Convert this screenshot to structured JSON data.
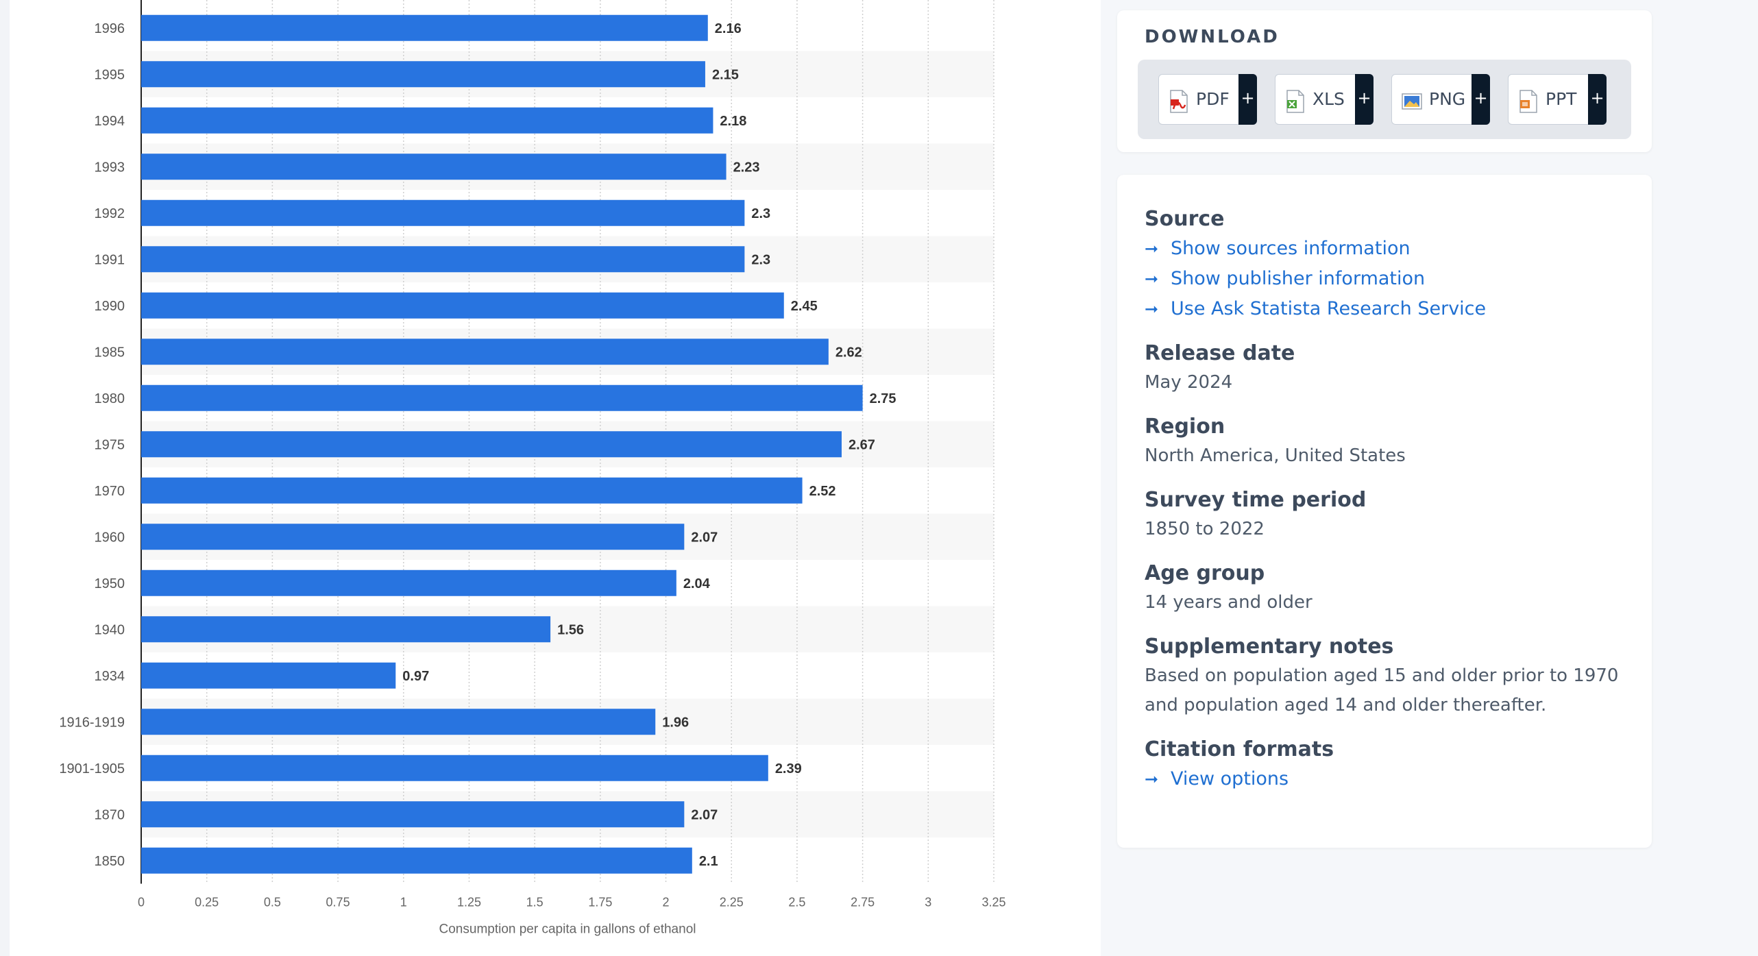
{
  "chart_data": {
    "type": "bar",
    "orientation": "horizontal",
    "categories": [
      "1996",
      "1995",
      "1994",
      "1993",
      "1992",
      "1991",
      "1990",
      "1985",
      "1980",
      "1975",
      "1970",
      "1960",
      "1950",
      "1940",
      "1934",
      "1916-1919",
      "1901-1905",
      "1870",
      "1850"
    ],
    "values": [
      2.16,
      2.15,
      2.18,
      2.23,
      2.3,
      2.3,
      2.45,
      2.62,
      2.75,
      2.67,
      2.52,
      2.07,
      2.04,
      1.56,
      0.97,
      1.96,
      2.39,
      2.07,
      2.1
    ],
    "value_labels": [
      "2.16",
      "2.15",
      "2.18",
      "2.23",
      "2.3",
      "2.3",
      "2.45",
      "2.62",
      "2.75",
      "2.67",
      "2.52",
      "2.07",
      "2.04",
      "1.56",
      "0.97",
      "1.96",
      "2.39",
      "2.07",
      "2.1"
    ],
    "x_ticks": [
      "0",
      "0.25",
      "0.5",
      "0.75",
      "1",
      "1.25",
      "1.5",
      "1.75",
      "2",
      "2.25",
      "2.5",
      "2.75",
      "3",
      "3.25"
    ],
    "xlim": [
      0,
      3.25
    ],
    "xlabel": "Consumption per capita in gallons of ethanol",
    "grid": true,
    "colors": {
      "bar": "#2874e0",
      "stripe": "#f7f7f7",
      "label": "#333333",
      "axis_text": "#666666"
    }
  },
  "download": {
    "title": "DOWNLOAD",
    "buttons": [
      {
        "label": "PDF",
        "icon": "pdf-file-icon",
        "color": "#d7261e"
      },
      {
        "label": "XLS",
        "icon": "xls-file-icon",
        "color": "#4aa33a"
      },
      {
        "label": "PNG",
        "icon": "png-file-icon",
        "color": "#3a7bd5"
      },
      {
        "label": "PPT",
        "icon": "ppt-file-icon",
        "color": "#e8822c"
      }
    ],
    "plus": "+"
  },
  "info": {
    "source": {
      "heading": "Source",
      "links": [
        "Show sources information",
        "Show publisher information",
        "Use Ask Statista Research Service"
      ]
    },
    "release": {
      "heading": "Release date",
      "value": "May 2024"
    },
    "region": {
      "heading": "Region",
      "value": "North America, United States"
    },
    "survey": {
      "heading": "Survey time period",
      "value": "1850 to 2022"
    },
    "age": {
      "heading": "Age group",
      "value": "14 years and older"
    },
    "notes": {
      "heading": "Supplementary notes",
      "line1": "Based on population aged 15 and older prior to 1970",
      "line2": "and population aged 14 and older thereafter."
    },
    "citation": {
      "heading": "Citation formats",
      "link": "View options"
    },
    "arrow": "➞"
  }
}
